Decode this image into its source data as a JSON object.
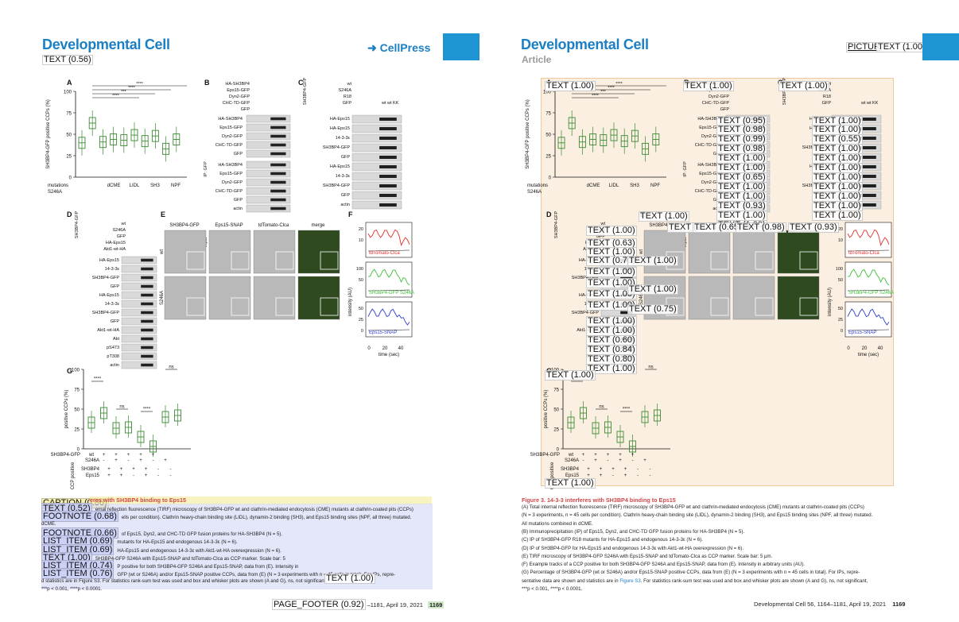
{
  "left_page": {
    "journal_title": "Developmental Cell",
    "publisher_logo": "CellPress",
    "header_annotation": "TEXT (0.56)",
    "caption_annotation": "CAPTION (0.86)",
    "caption_title_fragment": "eres with SH3BP4 binding to Eps15",
    "caption_lines": [
      {
        "label": "TEXT (0.52)",
        "text": "ernal reflection fluorescence (TIRF) microscopy of SH3BP4-GFP wt and clathrin-mediated endocytosis (CME) mutants at clathrin-coated pits (CCPs)"
      },
      {
        "label": "FOOTNOTE (0.68)",
        "text": "ells per condition). Clathrin heavy-chain binding site (LIDL), dynamin-2 binding (SH3), and Eps15 binding sites (NPF, all three) mutated."
      },
      {
        "label": "",
        "text": "dCME."
      },
      {
        "label": "FOOTNOTE (0.66)",
        "text": "of Eps15, Dyn2, and CHC-TD GFP fusion proteins for HA-SH3BP4 (N = 5)."
      },
      {
        "label": "LIST_ITEM (0.69)",
        "text": "mutants for HA-Eps15 and endogenous 14-3-3ε (N = 6)."
      },
      {
        "label": "LIST_ITEM (0.69)",
        "text": "HA-Eps15 and endogenous 14-3-3ε with Akt1-wt-HA overexpression (N = 6)."
      },
      {
        "label": "TEXT (1.00)",
        "text": "SH3BP4-GFP S246A with Eps15-SNAP and tdTomato-Clca as CCP marker. Scale bar: 5"
      },
      {
        "label": "LIST_ITEM (0.74)",
        "text": "P positive for both SH3BP4-GFP S246A and Eps15-SNAP, data from (E). Intensity in"
      },
      {
        "label": "LIST_ITEM (0.76)",
        "text": "GFP (wt or S246A) and/or Eps15-SNAP positive CCPs, data from (E) (N = 3 experiments with n = 45 cells in total). For IPs, repre-"
      },
      {
        "label": "",
        "text": "d statistics are in Figure S3. For statistics rank-sum test was used and box and whisker plots are shown (A and G), ns, not significant,"
      },
      {
        "label": "",
        "text": "***p < 0.001, ****p < 0.0001."
      }
    ],
    "inline_annotation": "TEXT (1.00)",
    "footer_annotation": "PAGE_FOOTER (0.92)",
    "footer_text": "–1181, April 19, 2021",
    "page_number": "1169"
  },
  "right_page": {
    "journal_title": "Developmental Cell",
    "section": "Article",
    "header_annotations": [
      "PICTUR",
      "TEXT (1.00)"
    ],
    "figure": {
      "panel_labels": [
        "A",
        "B",
        "C",
        "D",
        "E",
        "F",
        "G"
      ],
      "panelA": {
        "ylabel": "SH3BP4-GFP positive CCPs (%)",
        "yticks": [
          "100",
          "75",
          "50",
          "25",
          "0"
        ],
        "row1_label": "mutations",
        "row2_label": "S246A",
        "xgroups": [
          "dCME",
          "LIDL",
          "SH3",
          "NPF"
        ],
        "significance": [
          "****",
          "****",
          "***",
          "****"
        ]
      },
      "panelB": {
        "header_rows": [
          "HA-SH3BP4",
          "Eps15-GFP",
          "Dyn2-GFP",
          "CHC-TD-GFP",
          "GFP"
        ],
        "ip_label": "IP: GFP",
        "input_label": "Input",
        "ip_bands": [
          "HA-SH3BP4",
          "Eps15-GFP",
          "Dyn2-GFP",
          "CHC-TD-GFP",
          "GFP"
        ],
        "input_bands": [
          "HA-SH3BP4",
          "Eps15-GFP",
          "Dyn2-GFP",
          "CHC-TD-GFP",
          "GFP",
          "actin"
        ]
      },
      "panelC": {
        "side_label": "SH3BP4-GFP",
        "header_rows": [
          "wt",
          "S246A",
          "R18",
          "GFP"
        ],
        "lane_marks": "wt wt KK",
        "bands": [
          "HA-Eps15",
          "HA-Eps15",
          "14-3-3ε",
          "SH3BP4-GFP",
          "GFP",
          "HA-Eps15",
          "14-3-3ε",
          "SH3BP4-GFP",
          "GFP",
          "actin"
        ]
      },
      "panelD": {
        "side_label": "SH3BP4-GFP",
        "header_rows": [
          "wt",
          "S246A",
          "GFP",
          "HA-Eps15",
          "Akt1-wt-HA"
        ],
        "bands": [
          "HA-Eps15",
          "14-3-3ε",
          "SH3BP4-GFP",
          "GFP",
          "HA-Eps15",
          "14-3-3ε",
          "SH3BP4-GFP",
          "GFP",
          "Akt1-wt-HA",
          "Akt",
          "pS473",
          "pT308",
          "actin"
        ]
      },
      "panelE": {
        "columns": [
          "SH3BP4-GFP",
          "Eps15-SNAP",
          "tdTomato-Clca",
          "merge"
        ],
        "rows": [
          "wt",
          "S246A"
        ]
      },
      "panelF": {
        "ylabel": "intensity (AU)",
        "xlabel": "time (sec)",
        "xticks": [
          "0",
          "20",
          "40"
        ],
        "traces": [
          {
            "name": "tdTomato-Clca",
            "color": "#e0302b",
            "yticks": [
              "20",
              "10"
            ]
          },
          {
            "name": "SH3BP4-GFP S246A",
            "color": "#3fbf3a",
            "yticks": [
              "100",
              "50"
            ]
          },
          {
            "name": "Eps15-SNAP",
            "color": "#2c3fd1",
            "yticks": [
              "50",
              "25",
              "0"
            ]
          }
        ]
      },
      "panelG": {
        "ylabel": "positive CCPs (%)",
        "yticks": [
          "100",
          "75",
          "50",
          "25",
          "0"
        ],
        "row1_label": "SH3BP4-GFP",
        "row1_values": [
          "wt",
          "+",
          "+",
          "+",
          "+",
          "+",
          ""
        ],
        "row2_label": "S246A",
        "row2_values": [
          "",
          "-",
          "+",
          "-",
          "+",
          "-",
          "+"
        ],
        "ccp_label": "CCP positive",
        "row3_label": "SH3BP4",
        "row3_values": [
          "+",
          "+",
          "+",
          "+",
          "-",
          "-"
        ],
        "row4_label": "Eps15",
        "row4_values": [
          "+",
          "+",
          "-",
          "+",
          "-",
          "-"
        ],
        "significance": [
          "****",
          "ns",
          "****",
          "ns"
        ]
      }
    },
    "figure_annotations": [
      "TEXT (1.00)",
      "TEXT (1.00)",
      "TEXT (1.00)",
      "TEXT (1.00)",
      "TEXT (0.95)",
      "TEXT (0.98)",
      "TEXT (0.99)",
      "TEXT (0.98)",
      "TEXT (1.00)",
      "TEXT (1.00)",
      "TEXT (0.65)",
      "TEXT (1.00)",
      "TEXT (1.00)",
      "TEXT (0.93)",
      "TEXT (1.00)",
      "TEXT (1.00)",
      "TEXT (1.00)",
      "TEXT (1.00)",
      "TEXT (0.55)",
      "TEXT (1.00)",
      "TEXT (1.00)",
      "TEXT (1.00)",
      "TEXT (1.00)",
      "TEXT (1.00)",
      "TEXT (1.00)",
      "TEXT (1.00)",
      "TEXT (1.00)",
      "TEXT (1.00)",
      "TEXT (1.00)",
      "TEXT (0.65)",
      "TEXT (0.98)",
      "TEXT (0.93)",
      "TEXT (1.00)",
      "TEXT (0.63)",
      "TEXT (1.00)",
      "TEXT (0.70)",
      "TEXT (1.00)",
      "TEXT (1.00)",
      "TEXT (1.00)",
      "TEXT (1.00)",
      "TEXT (1.00)",
      "TEXT (1.00)",
      "TEXT (0.75)",
      "TEXT (1.00)",
      "TEXT (1.00)",
      "TEXT (0.60)",
      "TEXT (0.84)",
      "TEXT (0.80)",
      "TEXT (1.00)",
      "TEXT (1.00)",
      "TEXT (1.00)"
    ],
    "caption_title": "Figure 3. 14-3-3 interferes with SH3BP4 binding to Eps15",
    "caption_lines": [
      "(A) Total internal reflection fluorescence (TIRF) microscopy of SH3BP4-GFP wt and clathrin-mediated endocytosis (CME) mutants at clathrin-coated pits (CCPs)",
      "(N = 3 experiments, n = 45 cells per condition). Clathrin heavy-chain binding site (LIDL), dynamin-2 binding (SH3), and Eps15 binding sites (NPF, all three) mutated.",
      "All mutations combined in dCME.",
      "(B) Immunoprecipitation (IP) of Eps15, Dyn2, and CHC-TD GFP fusion proteins for HA-SH3BP4 (N = 5).",
      "(C) IP of SH3BP4-GFP R18 mutants for HA-Eps15 and endogenous 14-3-3ε (N = 6).",
      "(D) IP of SH3BP4-GFP for HA-Eps15 and endogenous 14-3-3ε with Akt1-wt-HA overexpression (N = 6).",
      "(E) TIRF microscopy of SH3BP4-GFP S246A with Eps15-SNAP and tdTomato-Clca as CCP marker. Scale bar: 5 μm.",
      "(F) Example tracks of a CCP positive for both SH3BP4-GFP S246A and Eps15-SNAP, data from (E). Intensity in arbitrary units (AU).",
      "(G) Percentage of SH3BP4-GFP (wt or S246A) and/or Eps15-SNAP positive CCPs, data from (E) (N = 3 experiments with n = 45 cells in total). For IPs, repre-",
      "sentative data are shown and statistics are in ",
      "***p < 0.001, ****p < 0.0001."
    ],
    "caption_link": "Figure S3",
    "caption_line10_tail": ". For statistics rank-sum test was used and box and whisker plots are shown (A and G), ns, not significant,",
    "footer_text": "Developmental Cell 56, 1164–1181, April 19, 2021",
    "page_number": "1169"
  },
  "colors": {
    "journal_blue": "#1b7fc4",
    "brand_block": "#1e94d2",
    "caption_red": "#d0494a",
    "box_green": "#3b8a33",
    "figure_highlight": "#fbefe1"
  }
}
